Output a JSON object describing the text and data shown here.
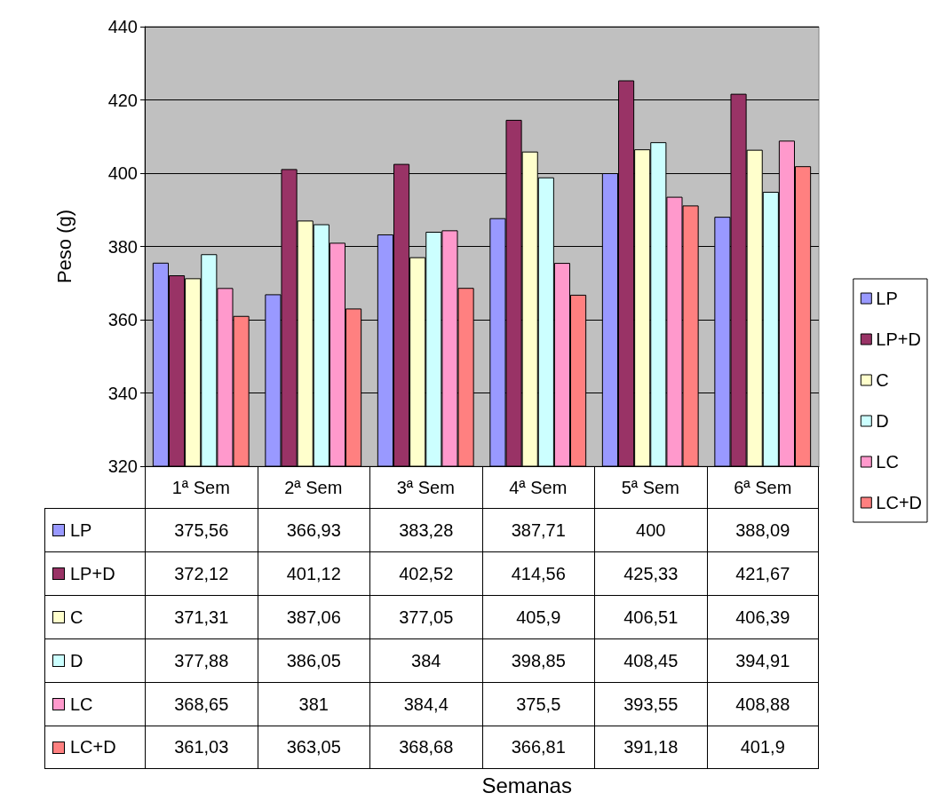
{
  "chart_data": {
    "type": "bar",
    "annotations": [
      "Semanas"
    ],
    "ylabel": "Peso (g)",
    "categories": [
      "1ª Sem",
      "2ª Sem",
      "3ª Sem",
      "4ª Sem",
      "5ª Sem",
      "6ª Sem"
    ],
    "ylim": [
      320,
      440
    ],
    "yticks": [
      320,
      340,
      360,
      380,
      400,
      420,
      440
    ],
    "grid": "y",
    "legend": "right",
    "series": [
      {
        "name": "LP",
        "color": "#9999ff",
        "values": [
          375.56,
          366.93,
          383.28,
          387.71,
          400,
          388.09
        ],
        "value_labels": [
          "375,56",
          "366,93",
          "383,28",
          "387,71",
          "400",
          "388,09"
        ]
      },
      {
        "name": "LP+D",
        "color": "#993366",
        "values": [
          372.12,
          401.12,
          402.52,
          414.56,
          425.33,
          421.67
        ],
        "value_labels": [
          "372,12",
          "401,12",
          "402,52",
          "414,56",
          "425,33",
          "421,67"
        ]
      },
      {
        "name": "C",
        "color": "#ffffcc",
        "values": [
          371.31,
          387.06,
          377.05,
          405.9,
          406.51,
          406.39
        ],
        "value_labels": [
          "371,31",
          "387,06",
          "377,05",
          "405,9",
          "406,51",
          "406,39"
        ]
      },
      {
        "name": "D",
        "color": "#ccffff",
        "values": [
          377.88,
          386.05,
          384,
          398.85,
          408.45,
          394.91
        ],
        "value_labels": [
          "377,88",
          "386,05",
          "384",
          "398,85",
          "408,45",
          "394,91"
        ]
      },
      {
        "name": "LC",
        "color": "#ff99cc",
        "values": [
          368.65,
          381,
          384.4,
          375.5,
          393.55,
          408.88
        ],
        "value_labels": [
          "368,65",
          "381",
          "384,4",
          "375,5",
          "393,55",
          "408,88"
        ]
      },
      {
        "name": "LC+D",
        "color": "#ff8080",
        "values": [
          361.03,
          363.05,
          368.68,
          366.81,
          391.18,
          401.9
        ],
        "value_labels": [
          "361,03",
          "363,05",
          "368,68",
          "366,81",
          "391,18",
          "401,9"
        ]
      }
    ]
  }
}
